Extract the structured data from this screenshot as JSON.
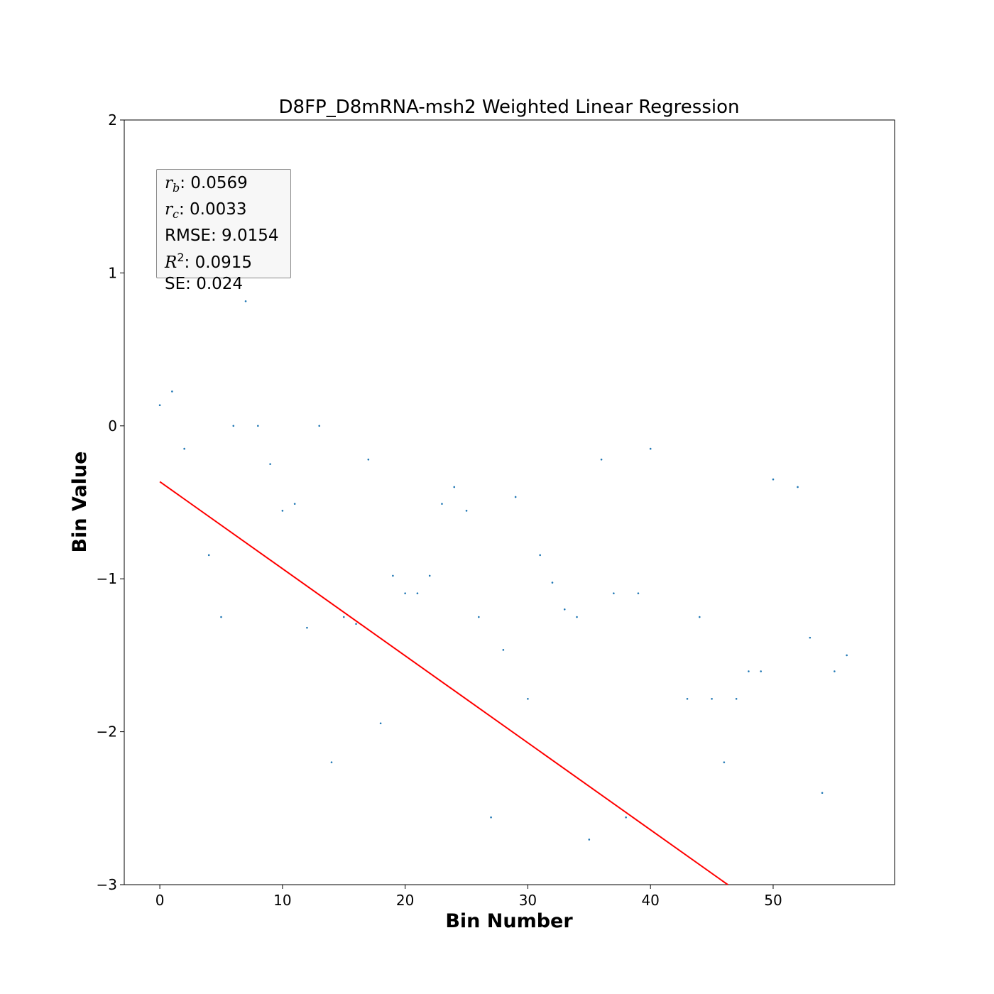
{
  "chart_data": {
    "type": "scatter",
    "title": "D8FP_D8mRNA-msh2 Weighted Linear Regression",
    "xlabel": "Bin Number",
    "ylabel": "Bin Value",
    "xlim": [
      -2.9,
      59.9
    ],
    "ylim": [
      -3,
      2
    ],
    "xticks": [
      0,
      10,
      20,
      30,
      40,
      50
    ],
    "yticks": [
      -3,
      -2,
      -1,
      0,
      1,
      2
    ],
    "xtick_labels": [
      "0",
      "10",
      "20",
      "30",
      "40",
      "50"
    ],
    "ytick_labels": [
      "−3",
      "−2",
      "−1",
      "0",
      "1",
      "2"
    ],
    "grid": false,
    "colors": {
      "points": "#1f77b4",
      "fit_line": "#ff0000",
      "box_border": "#888888",
      "box_fill": "#f5f5f5"
    },
    "series": [
      {
        "values_x": [
          0,
          1,
          2,
          4,
          5,
          6,
          7,
          8,
          9,
          10,
          11,
          12,
          13,
          14,
          15,
          16,
          17,
          18,
          19,
          20,
          21,
          22,
          23,
          24,
          25,
          26,
          27,
          28,
          29,
          30,
          31,
          32,
          33,
          34,
          35,
          36,
          37,
          38,
          39,
          40,
          43,
          44,
          45,
          46,
          47,
          48,
          49,
          50,
          52,
          53,
          54,
          55,
          56
        ],
        "values_y": [
          0.135,
          0.225,
          -0.15,
          -0.845,
          -1.25,
          0.0,
          0.815,
          0.0,
          -0.25,
          -0.555,
          -0.51,
          -1.32,
          0.0,
          -2.2,
          -1.25,
          -1.295,
          -0.22,
          -1.945,
          -0.98,
          -1.095,
          -1.095,
          -0.98,
          -0.51,
          -0.4,
          -0.555,
          -1.25,
          -2.56,
          -1.465,
          -0.465,
          -1.785,
          -0.845,
          -1.025,
          -1.2,
          -1.25,
          -2.705,
          -0.22,
          -1.095,
          -2.56,
          -1.095,
          -0.15,
          -1.785,
          -1.25,
          -1.785,
          -2.2,
          -1.785,
          -1.605,
          -1.605,
          -0.35,
          -0.4,
          -1.385,
          -2.4,
          -1.605,
          -1.5
        ]
      }
    ],
    "fit_line": {
      "x": [
        0,
        46.3
      ],
      "y": [
        -0.365,
        -3.0
      ]
    },
    "stats": [
      {
        "symbol": "r",
        "sub": "b",
        "sup": "",
        "text": ": 0.0569"
      },
      {
        "symbol": "r",
        "sub": "c",
        "sup": "",
        "text": ": 0.0033"
      },
      {
        "symbol": "",
        "sub": "",
        "sup": "",
        "text": "RMSE: 9.0154"
      },
      {
        "symbol": "R",
        "sub": "",
        "sup": "2",
        "text": ": 0.0915"
      },
      {
        "symbol": "",
        "sub": "",
        "sup": "",
        "text": "SE: 0.024"
      }
    ]
  }
}
